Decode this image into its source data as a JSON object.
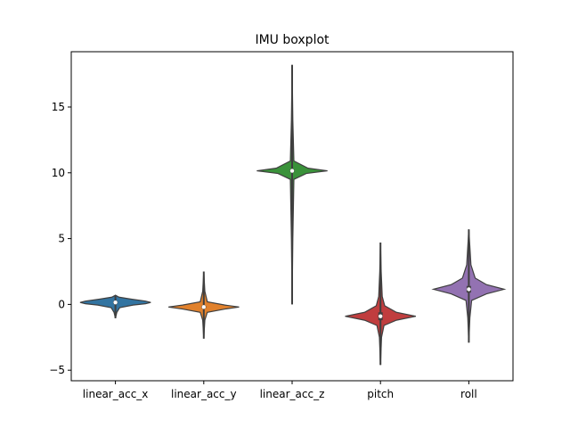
{
  "chart_data": {
    "type": "violin",
    "title": "IMU boxplot",
    "xlabel": "",
    "ylabel": "",
    "categories": [
      "linear_acc_x",
      "linear_acc_y",
      "linear_acc_z",
      "pitch",
      "roll"
    ],
    "ylim": [
      -5.8,
      19.2
    ],
    "yticks": [
      -5,
      0,
      5,
      10,
      15
    ],
    "ytick_labels": [
      "−5",
      "0",
      "5",
      "10",
      "15"
    ],
    "grid": false,
    "legend": "none",
    "series": [
      {
        "category": "linear_acc_x",
        "color": "#3274a1",
        "min": -1.05,
        "q1": 0.05,
        "median": 0.15,
        "q3": 0.25,
        "max": 0.7,
        "profile": [
          [
            -1.05,
            0.0
          ],
          [
            -0.6,
            0.04
          ],
          [
            -0.25,
            0.12
          ],
          [
            -0.05,
            0.5
          ],
          [
            0.05,
            0.85
          ],
          [
            0.15,
            1.0
          ],
          [
            0.25,
            0.85
          ],
          [
            0.4,
            0.45
          ],
          [
            0.55,
            0.1
          ],
          [
            0.7,
            0.0
          ]
        ]
      },
      {
        "category": "linear_acc_y",
        "color": "#e1812c",
        "min": -2.6,
        "q1": -0.3,
        "median": -0.2,
        "q3": -0.1,
        "max": 2.5,
        "profile": [
          [
            -2.6,
            0.0
          ],
          [
            -1.2,
            0.03
          ],
          [
            -0.6,
            0.1
          ],
          [
            -0.35,
            0.6
          ],
          [
            -0.2,
            1.0
          ],
          [
            -0.05,
            0.6
          ],
          [
            0.2,
            0.1
          ],
          [
            1.0,
            0.03
          ],
          [
            2.5,
            0.0
          ]
        ]
      },
      {
        "category": "linear_acc_z",
        "color": "#3a923a",
        "min": 0.0,
        "q1": 10.05,
        "median": 10.15,
        "q3": 10.25,
        "max": 18.2,
        "profile": [
          [
            0.0,
            0.0
          ],
          [
            5.0,
            0.02
          ],
          [
            9.5,
            0.05
          ],
          [
            9.95,
            0.4
          ],
          [
            10.15,
            1.0
          ],
          [
            10.35,
            0.45
          ],
          [
            10.9,
            0.05
          ],
          [
            14.0,
            0.02
          ],
          [
            18.2,
            0.0
          ]
        ]
      },
      {
        "category": "pitch",
        "color": "#c03d3e",
        "min": -4.6,
        "q1": -1.2,
        "median": -0.9,
        "q3": -0.6,
        "max": 4.7,
        "profile": [
          [
            -4.6,
            0.0
          ],
          [
            -2.5,
            0.03
          ],
          [
            -1.6,
            0.1
          ],
          [
            -1.2,
            0.45
          ],
          [
            -0.9,
            1.0
          ],
          [
            -0.6,
            0.45
          ],
          [
            -0.1,
            0.12
          ],
          [
            0.6,
            0.05
          ],
          [
            2.5,
            0.02
          ],
          [
            4.7,
            0.0
          ]
        ]
      },
      {
        "category": "roll",
        "color": "#9372b2",
        "min": -2.9,
        "q1": 0.9,
        "median": 1.15,
        "q3": 1.4,
        "max": 5.7,
        "profile": [
          [
            -2.9,
            0.0
          ],
          [
            -1.0,
            0.03
          ],
          [
            0.3,
            0.08
          ],
          [
            0.8,
            0.5
          ],
          [
            1.15,
            1.0
          ],
          [
            1.5,
            0.5
          ],
          [
            2.0,
            0.18
          ],
          [
            3.0,
            0.06
          ],
          [
            5.7,
            0.0
          ]
        ]
      }
    ]
  }
}
